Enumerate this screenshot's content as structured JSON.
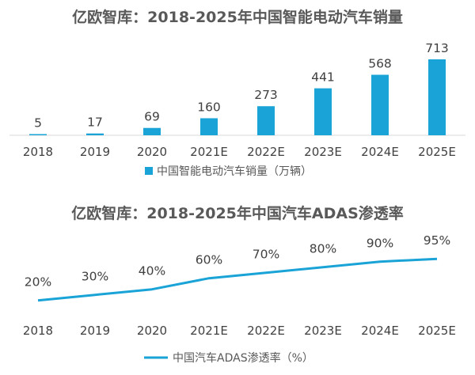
{
  "chart_data": [
    {
      "type": "bar",
      "title": "亿欧智库：2018-2025年中国智能电动汽车销量",
      "categories": [
        "2018",
        "2019",
        "2020",
        "2021E",
        "2022E",
        "2023E",
        "2024E",
        "2025E"
      ],
      "series": [
        {
          "name": "中国智能电动汽车销量（万辆）",
          "values": [
            5,
            17,
            69,
            160,
            273,
            441,
            568,
            713
          ]
        }
      ],
      "data_labels": [
        "5",
        "17",
        "69",
        "160",
        "273",
        "441",
        "568",
        "713"
      ],
      "ylim": [
        0,
        713
      ],
      "grid": false,
      "legend_position": "bottom",
      "color": "#1aa3d6"
    },
    {
      "type": "line",
      "title": "亿欧智库：2018-2025年中国汽车ADAS渗透率",
      "categories": [
        "2018",
        "2019",
        "2020",
        "2021E",
        "2022E",
        "2023E",
        "2024E",
        "2025E"
      ],
      "series": [
        {
          "name": "中国汽车ADAS渗透率（%）",
          "values": [
            20,
            30,
            40,
            60,
            70,
            80,
            90,
            95
          ]
        }
      ],
      "data_labels": [
        "20%",
        "30%",
        "40%",
        "60%",
        "70%",
        "80%",
        "90%",
        "95%"
      ],
      "grid": false,
      "legend_position": "bottom",
      "color": "#1aa3d6"
    }
  ]
}
